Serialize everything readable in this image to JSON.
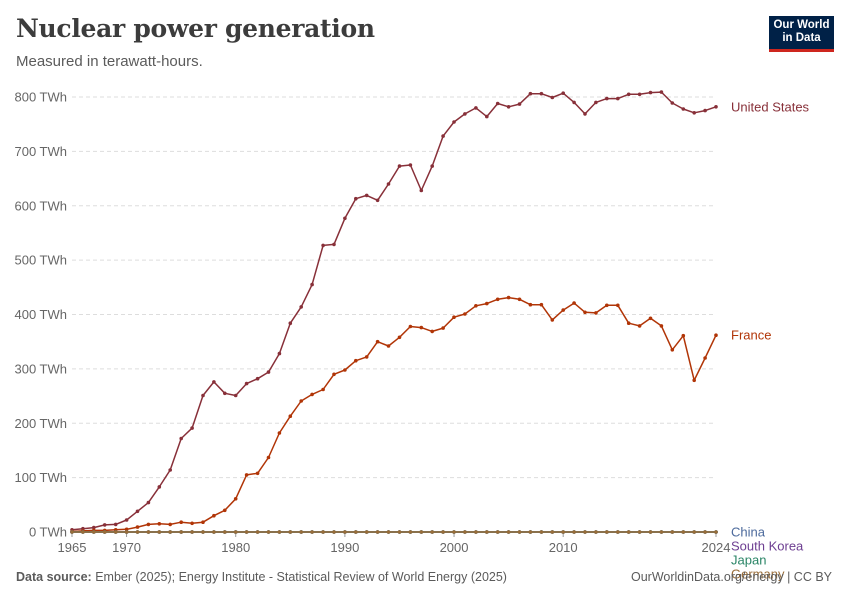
{
  "header": {
    "title": "Nuclear power generation",
    "subtitle": "Measured in terawatt-hours.",
    "logo_line1": "Our World",
    "logo_line2": "in Data"
  },
  "footer": {
    "source_label": "Data source:",
    "source_text": "Ember (2025); Energy Institute - Statistical Review of World Energy (2025)",
    "right_text": "OurWorldinData.org/energy | CC BY"
  },
  "colors": {
    "United States": "#883039",
    "France": "#b13507",
    "China": "#4c6a9c",
    "South Korea": "#6d3e91",
    "Japan": "#2a8566",
    "Germany": "#996d39",
    "grid": "#dddddd",
    "axis_text": "#666666",
    "brand_navy": "#002147",
    "brand_red": "#ce261e"
  },
  "chart_data": {
    "type": "line",
    "title": "Nuclear power generation",
    "subtitle": "Measured in terawatt-hours.",
    "ylim": [
      0,
      800
    ],
    "xlim": [
      1965,
      2024
    ],
    "x_ticks": [
      1965,
      1970,
      1980,
      1990,
      2000,
      2010,
      2024
    ],
    "y_ticks": [
      0,
      100,
      200,
      300,
      400,
      500,
      600,
      700,
      800
    ],
    "y_tick_labels": [
      "0 TWh",
      "100 TWh",
      "200 TWh",
      "300 TWh",
      "400 TWh",
      "500 TWh",
      "600 TWh",
      "700 TWh",
      "800 TWh"
    ],
    "grid": true,
    "legend": "line-end labels (right)",
    "x_start": 1965,
    "series": [
      {
        "name": "United States",
        "values": [
          4,
          6,
          8,
          13,
          14,
          22,
          38,
          54,
          83,
          114,
          172,
          191,
          251,
          276,
          255,
          251,
          273,
          282,
          294,
          328,
          384,
          414,
          455,
          527,
          529,
          577,
          613,
          619,
          610,
          640,
          673,
          675,
          628,
          673,
          728,
          754,
          769,
          780,
          764,
          788,
          782,
          787,
          806,
          806,
          799,
          807,
          790,
          769,
          790,
          797,
          797,
          805,
          805,
          808,
          809,
          789,
          778,
          771,
          775,
          782
        ]
      },
      {
        "name": "France",
        "values": [
          1,
          2,
          3,
          3,
          4,
          5,
          9,
          14,
          15,
          14,
          18,
          16,
          18,
          30,
          40,
          61,
          105,
          108,
          137,
          182,
          213,
          241,
          253,
          262,
          290,
          298,
          315,
          322,
          350,
          342,
          358,
          378,
          376,
          369,
          375,
          395,
          401,
          416,
          420,
          428,
          431,
          428,
          418,
          418,
          390,
          408,
          421,
          404,
          403,
          417,
          417,
          384,
          379,
          393,
          379,
          335,
          361,
          279,
          320,
          362
        ]
      },
      {
        "name": "China",
        "values": [
          0,
          0,
          0,
          0,
          0,
          0,
          0,
          0,
          0,
          0,
          0,
          0,
          0,
          0,
          0,
          0,
          0,
          0,
          0,
          0,
          0,
          0,
          0,
          0,
          0,
          0,
          0,
          0,
          0,
          0,
          0,
          0,
          0,
          0,
          0,
          0,
          0,
          0,
          0,
          0,
          0,
          0,
          0,
          0,
          0,
          0,
          0,
          0,
          0,
          0,
          0,
          0,
          0,
          0,
          0,
          0,
          0,
          0,
          0,
          0
        ]
      },
      {
        "name": "South Korea",
        "values": [
          0,
          0,
          0,
          0,
          0,
          0,
          0,
          0,
          0,
          0,
          0,
          0,
          0,
          0,
          0,
          0,
          0,
          0,
          0,
          0,
          0,
          0,
          0,
          0,
          0,
          0,
          0,
          0,
          0,
          0,
          0,
          0,
          0,
          0,
          0,
          0,
          0,
          0,
          0,
          0,
          0,
          0,
          0,
          0,
          0,
          0,
          0,
          0,
          0,
          0,
          0,
          0,
          0,
          0,
          0,
          0,
          0,
          0,
          0,
          0
        ]
      },
      {
        "name": "Japan",
        "values": [
          0,
          0,
          0,
          0,
          0,
          0,
          0,
          0,
          0,
          0,
          0,
          0,
          0,
          0,
          0,
          0,
          0,
          0,
          0,
          0,
          0,
          0,
          0,
          0,
          0,
          0,
          0,
          0,
          0,
          0,
          0,
          0,
          0,
          0,
          0,
          0,
          0,
          0,
          0,
          0,
          0,
          0,
          0,
          0,
          0,
          0,
          0,
          0,
          0,
          0,
          0,
          0,
          0,
          0,
          0,
          0,
          0,
          0,
          0,
          0
        ]
      },
      {
        "name": "Germany",
        "values": [
          0,
          0,
          0,
          0,
          0,
          0,
          0,
          0,
          0,
          0,
          0,
          0,
          0,
          0,
          0,
          0,
          0,
          0,
          0,
          0,
          0,
          0,
          0,
          0,
          0,
          0,
          0,
          0,
          0,
          0,
          0,
          0,
          0,
          0,
          0,
          0,
          0,
          0,
          0,
          0,
          0,
          0,
          0,
          0,
          0,
          0,
          0,
          0,
          0,
          0,
          0,
          0,
          0,
          0,
          0,
          0,
          0,
          0,
          0,
          0
        ]
      }
    ]
  }
}
